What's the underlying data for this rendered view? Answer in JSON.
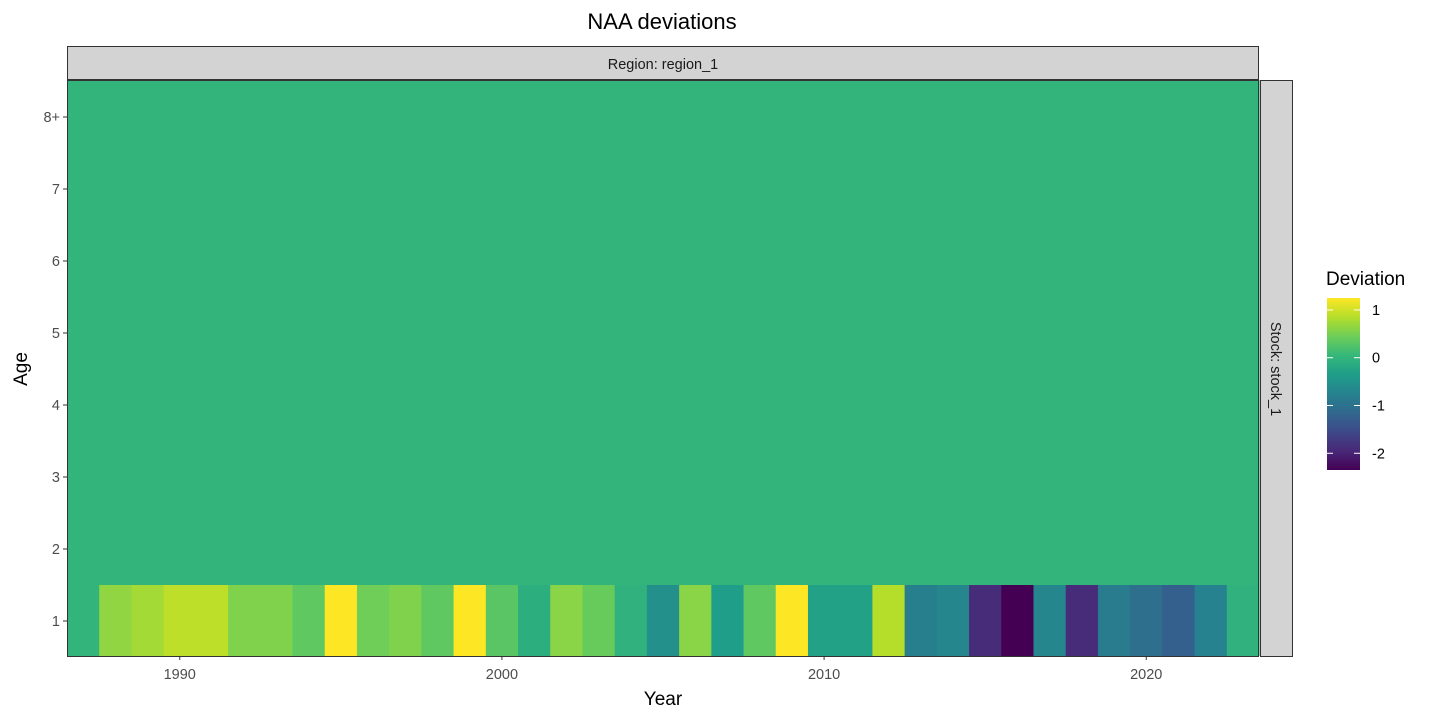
{
  "chart_data": {
    "type": "heatmap",
    "title": "NAA deviations",
    "xlabel": "Year",
    "ylabel": "Age",
    "facet_top": "Region: region_1",
    "facet_right": "Stock: stock_1",
    "x_ticks": [
      1990,
      2000,
      2010,
      2020
    ],
    "xlim": [
      1986.5,
      2023.5
    ],
    "ages": [
      "1",
      "2",
      "3",
      "4",
      "5",
      "6",
      "7",
      "8+"
    ],
    "years": [
      1987,
      1988,
      1989,
      1990,
      1991,
      1992,
      1993,
      1994,
      1995,
      1996,
      1997,
      1998,
      1999,
      2000,
      2001,
      2002,
      2003,
      2004,
      2005,
      2006,
      2007,
      2008,
      2009,
      2010,
      2011,
      2012,
      2013,
      2014,
      2015,
      2016,
      2017,
      2018,
      2019,
      2020,
      2021,
      2022,
      2023
    ],
    "age1_values": [
      0,
      0.65,
      0.75,
      0.9,
      0.9,
      0.55,
      0.55,
      0.35,
      1.25,
      0.45,
      0.55,
      0.35,
      1.25,
      0.3,
      -0.1,
      0.6,
      0.4,
      -0.05,
      -0.55,
      0.6,
      -0.35,
      0.35,
      1.25,
      -0.3,
      -0.3,
      0.85,
      -0.8,
      -0.7,
      -1.9,
      -2.35,
      -0.7,
      -1.9,
      -0.85,
      -1.05,
      -1.25,
      -0.75,
      -0.05
    ],
    "other_ages_value": 0,
    "legend": {
      "title": "Deviation",
      "ticks": [
        1,
        0,
        -1,
        -2
      ],
      "range": [
        -2.35,
        1.25
      ]
    },
    "colors": {
      "viridis": [
        "#440154",
        "#482878",
        "#3e4989",
        "#31688e",
        "#26828e",
        "#1f9e89",
        "#35b779",
        "#6ece58",
        "#b5de2b",
        "#fde725"
      ],
      "strip_fill": "#d3d3d3",
      "strip_border": "#333333"
    }
  }
}
